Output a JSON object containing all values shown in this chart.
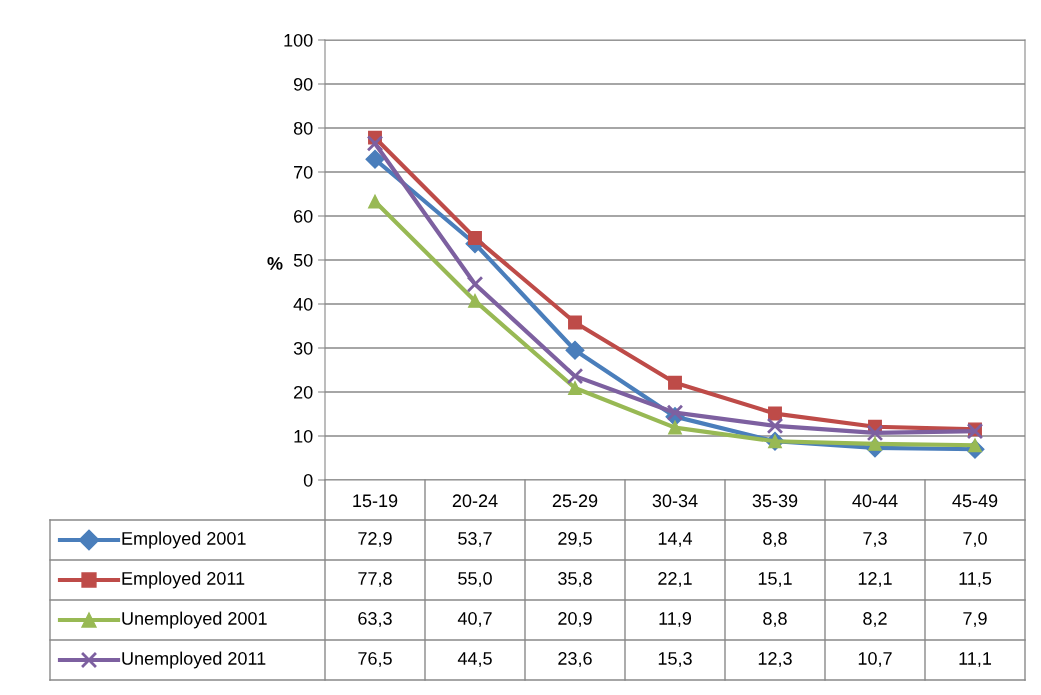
{
  "chart_data": {
    "type": "line",
    "ylabel": "%",
    "categories": [
      "15-19",
      "20-24",
      "25-29",
      "30-34",
      "35-39",
      "40-44",
      "45-49"
    ],
    "ylim": [
      0,
      100
    ],
    "yticks": [
      0,
      10,
      20,
      30,
      40,
      50,
      60,
      70,
      80,
      90,
      100
    ],
    "grid": "y",
    "legend": "bottom",
    "series": [
      {
        "name": "Employed 2001",
        "color": "#4a7ebb",
        "marker": "diamond",
        "values": [
          72.9,
          53.7,
          29.5,
          14.4,
          8.8,
          7.3,
          7.0
        ],
        "value_labels": [
          "72,9",
          "53,7",
          "29,5",
          "14,4",
          "8,8",
          "7,3",
          "7,0"
        ]
      },
      {
        "name": "Employed 2011",
        "color": "#be4b48",
        "marker": "square",
        "values": [
          77.8,
          55.0,
          35.8,
          22.1,
          15.1,
          12.1,
          11.5
        ],
        "value_labels": [
          "77,8",
          "55,0",
          "35,8",
          "22,1",
          "15,1",
          "12,1",
          "11,5"
        ]
      },
      {
        "name": "Unemployed 2001",
        "color": "#98b954",
        "marker": "triangle",
        "values": [
          63.3,
          40.7,
          20.9,
          11.9,
          8.8,
          8.2,
          7.9
        ],
        "value_labels": [
          "63,3",
          "40,7",
          "20,9",
          "11,9",
          "8,8",
          "8,2",
          "7,9"
        ]
      },
      {
        "name": "Unemployed 2011",
        "color": "#7d60a0",
        "marker": "cross",
        "values": [
          76.5,
          44.5,
          23.6,
          15.3,
          12.3,
          10.7,
          11.1
        ],
        "value_labels": [
          "76,5",
          "44,5",
          "23,6",
          "15,3",
          "12,3",
          "10,7",
          "11,1"
        ]
      }
    ]
  }
}
